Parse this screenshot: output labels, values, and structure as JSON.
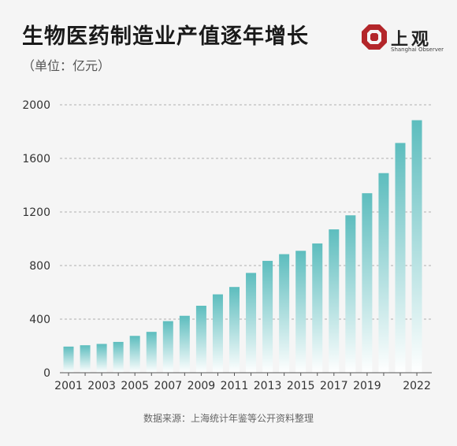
{
  "title": "生物医药制造业产值逐年增长",
  "subtitle": "（单位：亿元）",
  "logo": {
    "name": "上观",
    "english": "Shanghai Observer",
    "color": "#b3262a"
  },
  "source": "数据来源：上海统计年鉴等公开资料整理",
  "colors": {
    "bar_top": "#5dbdbe",
    "bar_bottom": "#ffffff",
    "grid": "#b0b0b0"
  },
  "chart_data": {
    "type": "bar",
    "categories": [
      "2001",
      "2002",
      "2003",
      "2004",
      "2005",
      "2006",
      "2007",
      "2008",
      "2009",
      "2010",
      "2011",
      "2012",
      "2013",
      "2014",
      "2015",
      "2016",
      "2017",
      "2018",
      "2019",
      "2020",
      "2021",
      "2022"
    ],
    "values": [
      195,
      205,
      215,
      230,
      275,
      305,
      385,
      425,
      500,
      585,
      640,
      745,
      835,
      885,
      910,
      965,
      1070,
      1175,
      1340,
      1490,
      1715,
      1885
    ],
    "tick_labels_x": [
      "2001",
      "2003",
      "2005",
      "2007",
      "2009",
      "2011",
      "2013",
      "2015",
      "2017",
      "2019",
      "2022"
    ],
    "yticks": [
      0,
      400,
      800,
      1200,
      1600,
      2000
    ],
    "ylim": [
      0,
      2000
    ],
    "grid": true
  }
}
